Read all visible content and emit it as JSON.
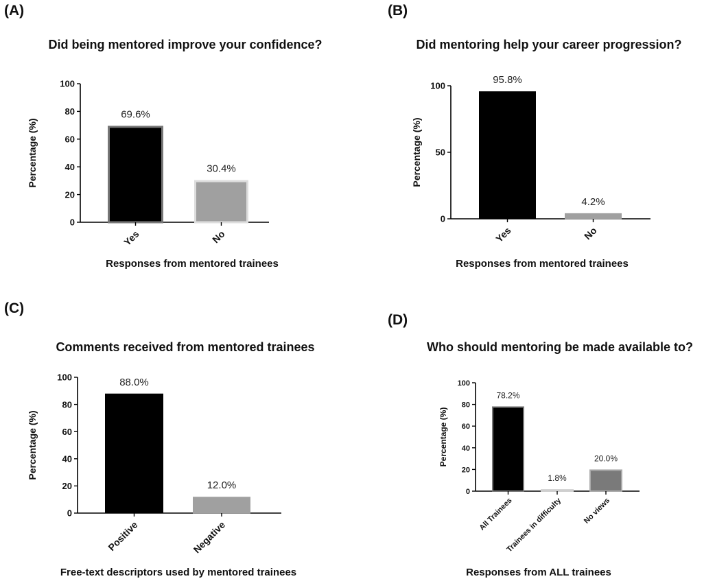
{
  "chart_data": [
    {
      "type": "bar",
      "panel_label": "(A)",
      "title": "Did being mentored improve your confidence?",
      "xlabel": "Responses from mentored trainees",
      "ylabel": "Percentage (%)",
      "categories": [
        "Yes",
        "No"
      ],
      "values": [
        69.6,
        30.4
      ],
      "value_labels": [
        "69.6%",
        "30.4%"
      ],
      "yticks": [
        "0",
        "20",
        "40",
        "60",
        "80",
        "100"
      ],
      "ylim": [
        0,
        100
      ],
      "bar_colors": [
        "#000000",
        "#a0a0a0"
      ],
      "bar_edge_colors": [
        "#777777",
        "#dddddd"
      ]
    },
    {
      "type": "bar",
      "panel_label": "(B)",
      "title": "Did mentoring help your career progression?",
      "xlabel": "Responses from mentored trainees",
      "ylabel": "Percentage (%)",
      "categories": [
        "Yes",
        "No"
      ],
      "values": [
        95.8,
        4.2
      ],
      "value_labels": [
        "95.8%",
        "4.2%"
      ],
      "yticks": [
        "0",
        "50",
        "100"
      ],
      "ylim": [
        0,
        100
      ],
      "bar_colors": [
        "#000000",
        "#a0a0a0"
      ],
      "bar_edge_colors": [
        "#000000",
        "#a0a0a0"
      ]
    },
    {
      "type": "bar",
      "panel_label": "(C)",
      "title": "Comments received from mentored trainees",
      "xlabel": "Free-text descriptors used by mentored trainees",
      "ylabel": "Percentage (%)",
      "categories": [
        "Positive",
        "Negative"
      ],
      "values": [
        88.0,
        12.0
      ],
      "value_labels": [
        "88.0%",
        "12.0%"
      ],
      "yticks": [
        "0",
        "20",
        "40",
        "60",
        "80",
        "100"
      ],
      "ylim": [
        0,
        100
      ],
      "bar_colors": [
        "#000000",
        "#a0a0a0"
      ],
      "bar_edge_colors": [
        "#000000",
        "#a0a0a0"
      ]
    },
    {
      "type": "bar",
      "panel_label": "(D)",
      "title": "Who should mentoring be made available to?",
      "xlabel": "Responses from ALL trainees",
      "ylabel": "Percentage (%)",
      "categories": [
        "All Trainees",
        "Trainees in difficulty",
        "No views"
      ],
      "values": [
        78.2,
        1.8,
        20.0
      ],
      "value_labels": [
        "78.2%",
        "1.8%",
        "20.0%"
      ],
      "yticks": [
        "0",
        "20",
        "40",
        "60",
        "80",
        "100"
      ],
      "ylim": [
        0,
        100
      ],
      "bar_colors": [
        "#000000",
        "#a0a0a0",
        "#7a7a7a"
      ],
      "bar_edge_colors": [
        "#777777",
        "#cfcfcf",
        "#aaaaaa"
      ]
    }
  ]
}
